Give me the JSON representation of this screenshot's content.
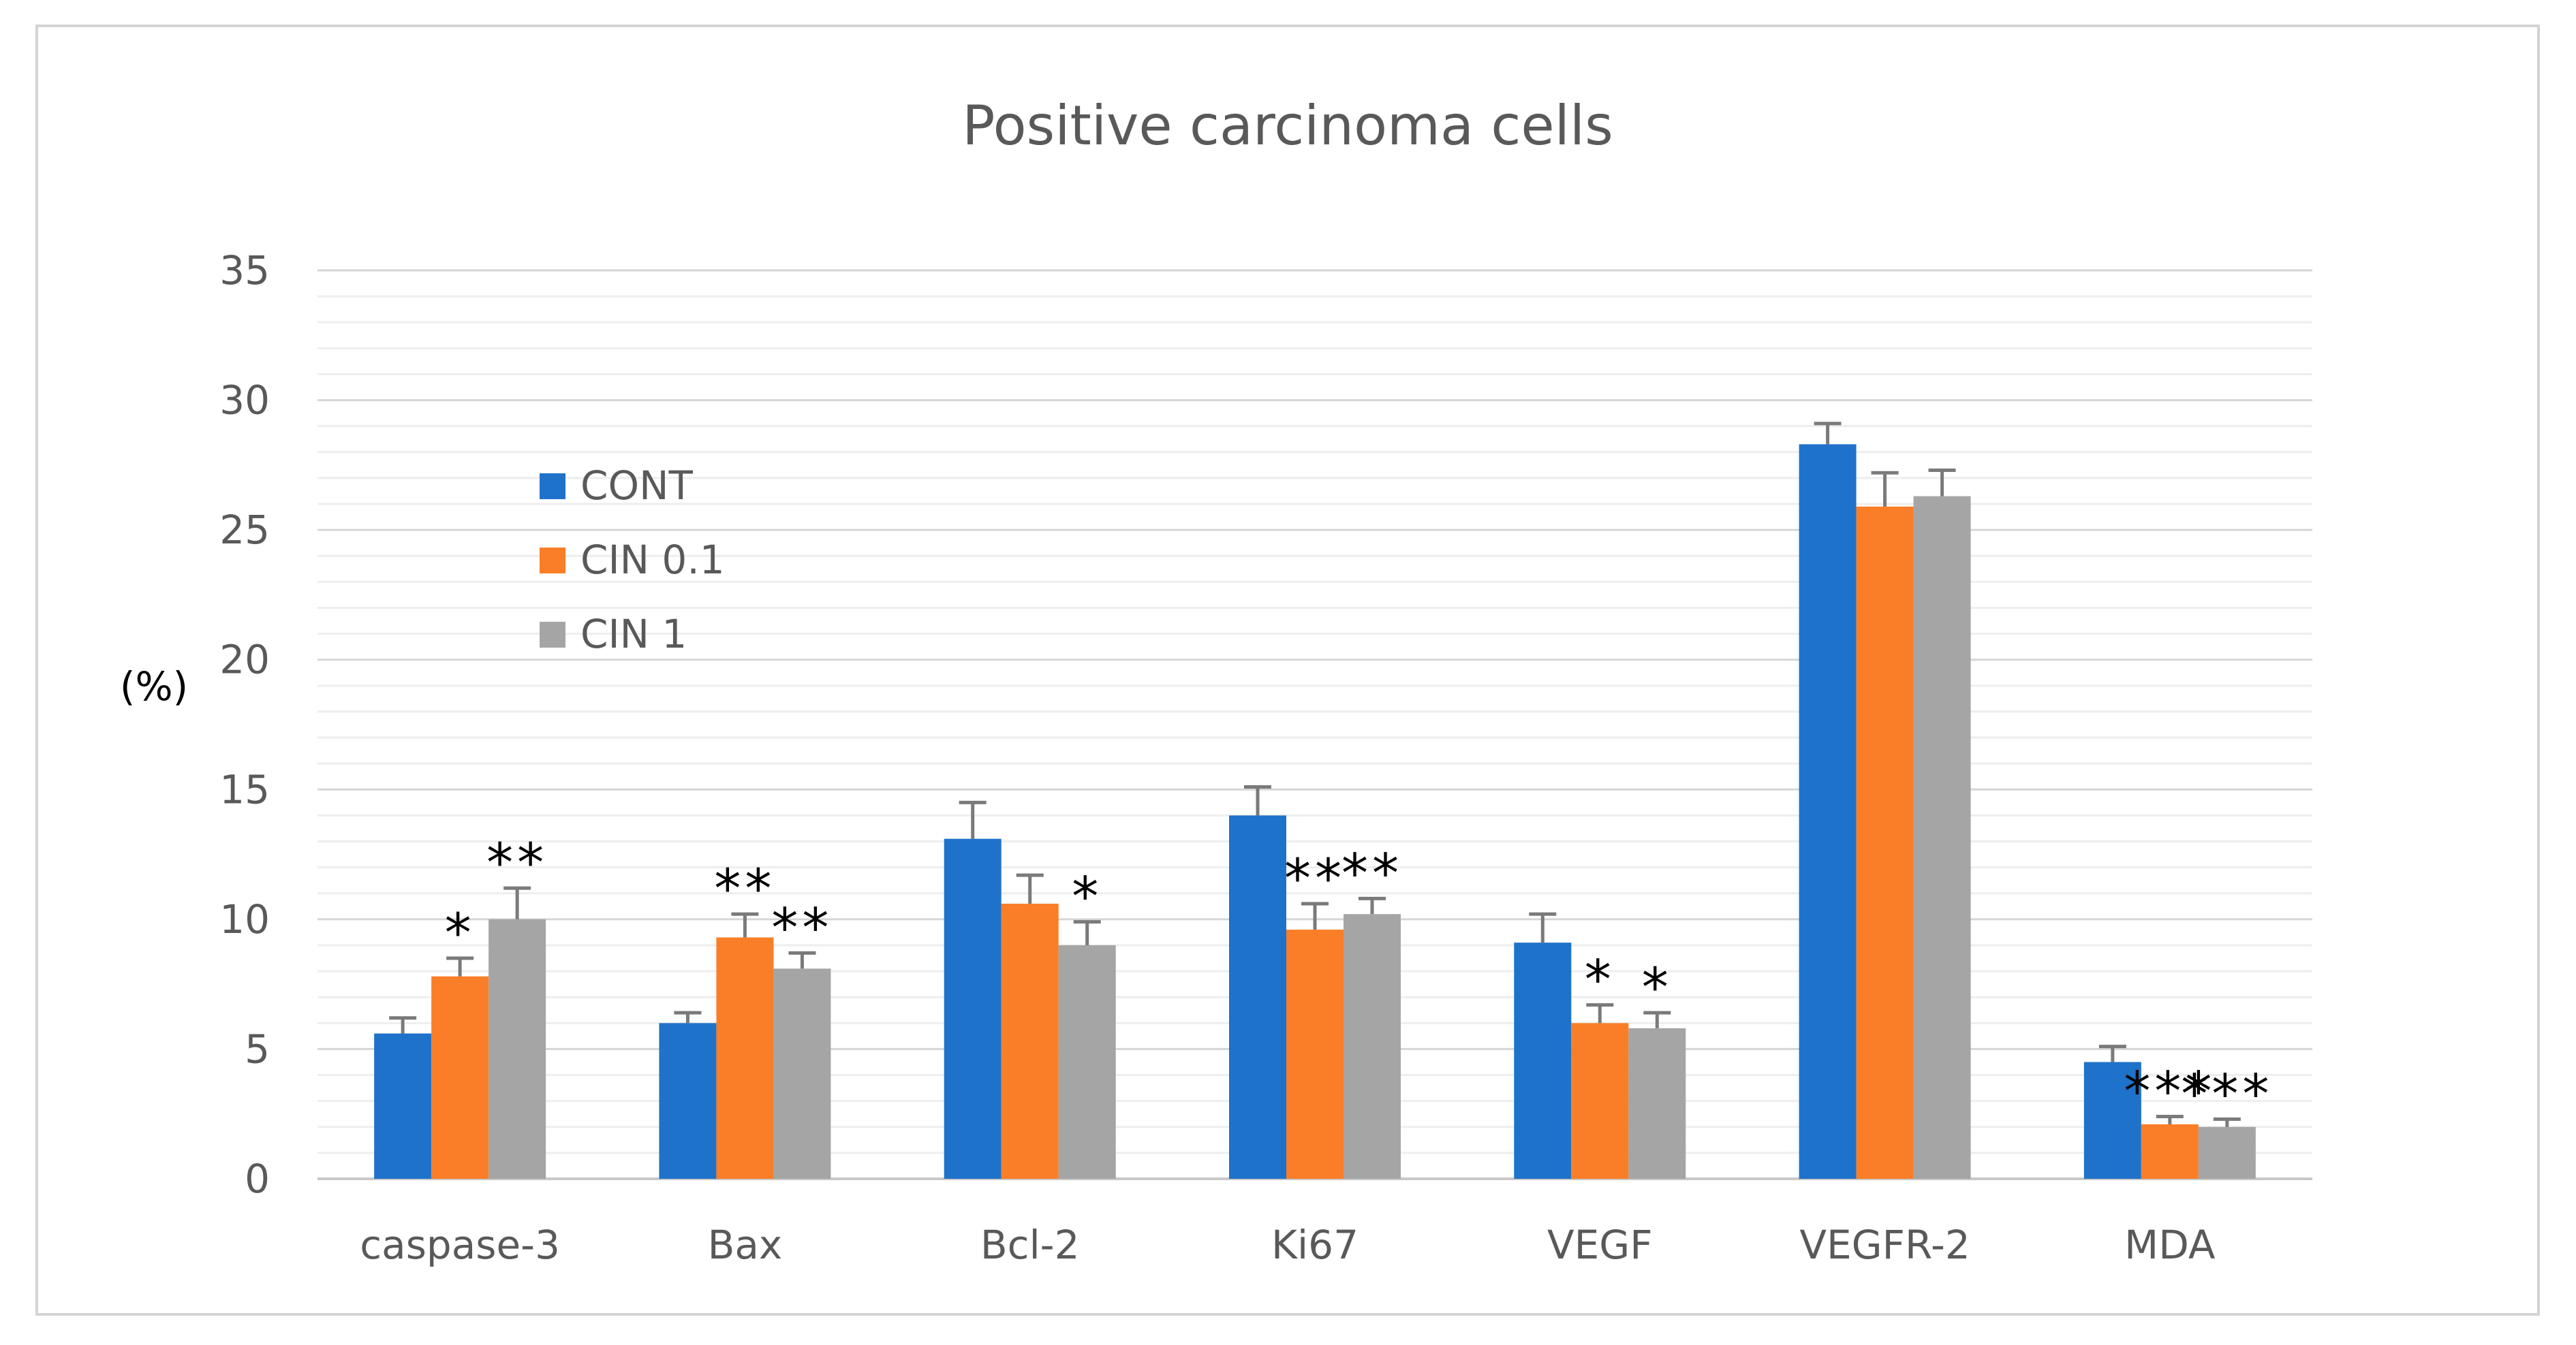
{
  "chart_data": {
    "type": "bar",
    "title": "Positive carcinoma cells",
    "ylabel": "(%)",
    "xlabel": "",
    "ylim": [
      0,
      35
    ],
    "yticks": [
      0,
      5,
      10,
      15,
      20,
      25,
      30,
      35
    ],
    "major_grid": true,
    "minor_grid_step": 1,
    "legend_position": "upper-left",
    "categories": [
      "caspase-3",
      "Bax",
      "Bcl-2",
      "Ki67",
      "VEGF",
      "VEGFR-2",
      "MDA"
    ],
    "series": [
      {
        "name": "CONT",
        "color": "#1f72c9",
        "values": [
          5.6,
          6.0,
          13.1,
          14.0,
          9.1,
          28.3,
          4.5
        ],
        "errors": [
          0.6,
          0.4,
          1.4,
          1.1,
          1.1,
          0.8,
          0.6
        ],
        "significance": [
          "",
          "",
          "",
          "",
          "",
          "",
          ""
        ]
      },
      {
        "name": "CIN 0.1",
        "color": "#fa7e27",
        "values": [
          7.8,
          9.3,
          10.6,
          9.6,
          6.0,
          25.9,
          2.1
        ],
        "errors": [
          0.7,
          0.9,
          1.1,
          1.0,
          0.7,
          1.3,
          0.3
        ],
        "significance": [
          "*",
          "**",
          "",
          "**",
          "*",
          "",
          "***"
        ]
      },
      {
        "name": "CIN 1",
        "color": "#a5a5a5",
        "values": [
          10.0,
          8.1,
          9.0,
          10.2,
          5.8,
          26.3,
          2.0
        ],
        "errors": [
          1.2,
          0.6,
          0.9,
          0.6,
          0.6,
          1.0,
          0.3
        ],
        "significance": [
          "**",
          "**",
          "*",
          "**",
          "*",
          "",
          "***"
        ]
      }
    ]
  }
}
